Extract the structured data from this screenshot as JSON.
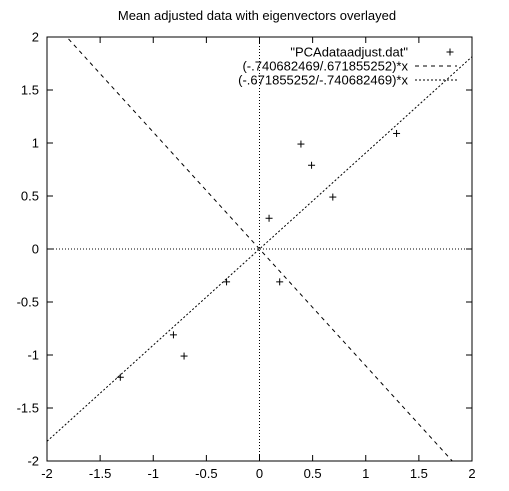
{
  "chart_data": {
    "type": "scatter",
    "title": "Mean adjusted data with eigenvectors overlayed",
    "xlabel": "",
    "ylabel": "",
    "xlim": [
      -2,
      2
    ],
    "ylim": [
      -2,
      2
    ],
    "x_ticks": [
      -2,
      -1.5,
      -1,
      -0.5,
      0,
      0.5,
      1,
      1.5,
      2
    ],
    "y_ticks": [
      -2,
      -1.5,
      -1,
      -0.5,
      0,
      0.5,
      1,
      1.5,
      2
    ],
    "x_tick_labels": [
      "-2",
      "-1.5",
      "-1",
      "-0.5",
      "0",
      "0.5",
      "1",
      "1.5",
      "2"
    ],
    "y_tick_labels": [
      "-2",
      "-1.5",
      "-1",
      "-0.5",
      "0",
      "0.5",
      "1",
      "1.5",
      "2"
    ],
    "grid": false,
    "zero_axes": true,
    "legend_position": "top-right",
    "series": [
      {
        "name": "\"PCAdataadjust.dat\"",
        "kind": "points",
        "marker": "plus",
        "points": [
          {
            "x": 0.69,
            "y": 0.49
          },
          {
            "x": -1.31,
            "y": -1.21
          },
          {
            "x": 0.39,
            "y": 0.99
          },
          {
            "x": 0.09,
            "y": 0.29
          },
          {
            "x": 1.29,
            "y": 1.09
          },
          {
            "x": 0.49,
            "y": 0.79
          },
          {
            "x": 0.19,
            "y": -0.31
          },
          {
            "x": -0.81,
            "y": -0.81
          },
          {
            "x": -0.31,
            "y": -0.31
          },
          {
            "x": -0.71,
            "y": -1.01
          }
        ]
      },
      {
        "name": "(-.740682469/.671855252)*x",
        "kind": "line",
        "slope": -1.1024,
        "dash": "long"
      },
      {
        "name": "(-.671855252/-.740682469)*x",
        "kind": "line",
        "slope": 0.9071,
        "dash": "short"
      }
    ]
  }
}
